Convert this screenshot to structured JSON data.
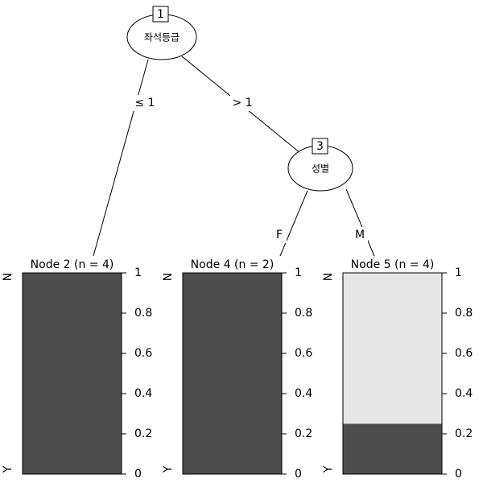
{
  "nodes": [
    {
      "id": "1",
      "label": "좌석등급"
    },
    {
      "id": "3",
      "label": "성별"
    }
  ],
  "edges": [
    {
      "label": "≤ 1"
    },
    {
      "label": "> 1"
    },
    {
      "label": "F"
    },
    {
      "label": "M"
    }
  ],
  "levels": [
    "Y",
    "N"
  ],
  "colors": [
    "#4d4d4d",
    "#e6e6e6"
  ],
  "ylim": [
    0,
    1
  ],
  "yticks": [
    0,
    0.2,
    0.4,
    0.6,
    0.8,
    1
  ],
  "terminals": [
    {
      "title": "Node 2 (n = 4)",
      "values": [
        1,
        0
      ]
    },
    {
      "title": "Node 4 (n = 2)",
      "values": [
        1,
        0
      ]
    },
    {
      "title": "Node 5 (n = 4)",
      "values": [
        0.25,
        0.75
      ]
    }
  ]
}
